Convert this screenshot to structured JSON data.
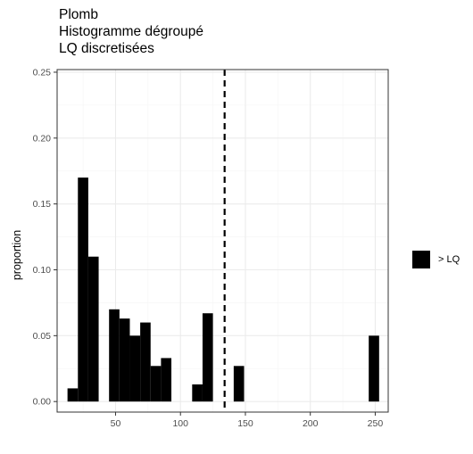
{
  "chart_data": {
    "type": "bar",
    "title": "Plomb",
    "subtitle_lines": [
      "Histogramme dégroupé",
      "LQ discretisées"
    ],
    "xlabel": "",
    "ylabel": "proportion",
    "xlim": [
      5,
      260
    ],
    "ylim": [
      -0.008,
      0.252
    ],
    "x_ticks": [
      50,
      100,
      150,
      200,
      250
    ],
    "x_tick_labels": [
      "50",
      "100",
      "150",
      "200",
      "250"
    ],
    "y_ticks": [
      0.0,
      0.05,
      0.1,
      0.15,
      0.2,
      0.25
    ],
    "y_tick_labels": [
      "0.00",
      "0.05",
      "0.10",
      "0.15",
      "0.20",
      "0.25"
    ],
    "grid": true,
    "bin_width": 8,
    "bars": [
      {
        "x0": 13,
        "x1": 21,
        "value": 0.01
      },
      {
        "x0": 21,
        "x1": 29,
        "value": 0.17
      },
      {
        "x0": 29,
        "x1": 37,
        "value": 0.11
      },
      {
        "x0": 45,
        "x1": 53,
        "value": 0.07
      },
      {
        "x0": 53,
        "x1": 61,
        "value": 0.063
      },
      {
        "x0": 61,
        "x1": 69,
        "value": 0.05
      },
      {
        "x0": 69,
        "x1": 77,
        "value": 0.06
      },
      {
        "x0": 77,
        "x1": 85,
        "value": 0.027
      },
      {
        "x0": 85,
        "x1": 93,
        "value": 0.033
      },
      {
        "x0": 109,
        "x1": 117,
        "value": 0.013
      },
      {
        "x0": 117,
        "x1": 125,
        "value": 0.067
      },
      {
        "x0": 141,
        "x1": 149,
        "value": 0.027
      },
      {
        "x0": 245,
        "x1": 253,
        "value": 0.05
      }
    ],
    "vline": {
      "x": 134,
      "style": "dashed"
    },
    "legend": {
      "position": "right",
      "entries": [
        {
          "label": "> LQ",
          "color": "#000000"
        }
      ]
    },
    "colors": {
      "bar": "#000000",
      "panel_border": "#333333",
      "grid_major": "#ebebeb",
      "grid_minor": "#f5f5f5"
    }
  }
}
